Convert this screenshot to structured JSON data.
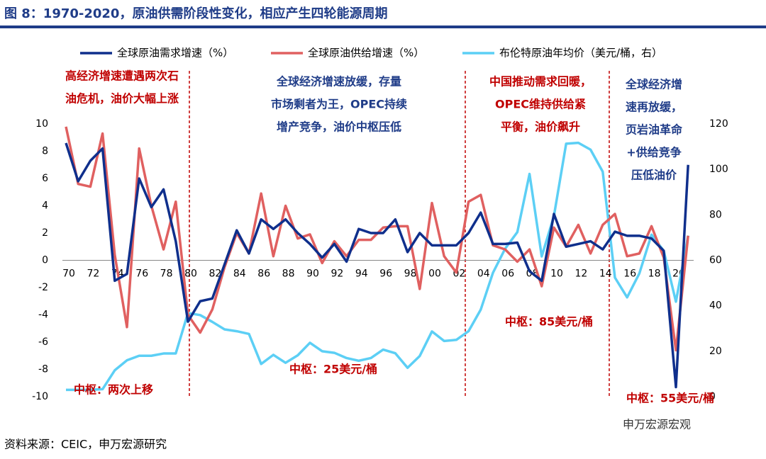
{
  "chart_data": {
    "type": "line",
    "title": "图 8：1970-2020，原油供需阶段性变化，相应产生四轮能源周期",
    "categories": [
      "70",
      null,
      "72",
      null,
      "74",
      null,
      "76",
      null,
      "78",
      null,
      "80",
      null,
      "82",
      null,
      "84",
      null,
      "86",
      null,
      "88",
      null,
      "90",
      null,
      "92",
      null,
      "94",
      null,
      "96",
      null,
      "98",
      null,
      "00",
      null,
      "02",
      null,
      "04",
      null,
      "06",
      null,
      "08",
      null,
      "10",
      null,
      "12",
      null,
      "14",
      null,
      "16",
      null,
      "18",
      null,
      "20",
      null
    ],
    "series": [
      {
        "name": "全球原油需求增速（%）",
        "color": "#0f2f8c",
        "values": [
          8.6,
          5.8,
          7.3,
          8.2,
          -1.5,
          -1.0,
          6.0,
          3.9,
          5.2,
          1.4,
          -4.5,
          -3.0,
          -2.8,
          -0.3,
          2.2,
          0.5,
          3.0,
          2.3,
          3.0,
          2.0,
          1.2,
          0.2,
          1.2,
          -0.1,
          2.3,
          2.0,
          2.0,
          3.0,
          0.6,
          2.0,
          1.1,
          1.1,
          1.1,
          2.0,
          3.5,
          1.2,
          1.2,
          1.3,
          -0.8,
          -1.5,
          3.4,
          1.0,
          1.2,
          1.4,
          0.8,
          2.1,
          1.8,
          1.8,
          1.6,
          0.7,
          -9.3,
          7.0
        ]
      },
      {
        "name": "全球原油供给增速（%）",
        "color": "#e06060",
        "values": [
          9.8,
          5.6,
          5.4,
          9.3,
          0.4,
          -4.9,
          8.2,
          4.0,
          0.8,
          4.3,
          -4.0,
          -5.3,
          -3.6,
          -0.5,
          2.0,
          0.5,
          4.9,
          0.3,
          4.0,
          1.6,
          1.9,
          -0.2,
          1.4,
          0.3,
          1.5,
          1.5,
          2.4,
          2.5,
          2.5,
          -2.1,
          4.2,
          0.3,
          -0.9,
          4.3,
          4.8,
          1.1,
          0.8,
          -0.1,
          0.8,
          -1.9,
          2.4,
          1.0,
          2.6,
          0.5,
          2.6,
          3.4,
          0.3,
          0.5,
          2.5,
          0.2,
          -6.6,
          1.8
        ]
      },
      {
        "name": "布伦特原油年均价（美元/桶，右）",
        "color": "#5ccff5",
        "axis": "y2",
        "values": [
          3,
          3,
          3,
          3.3,
          11.6,
          16,
          18,
          18,
          19,
          19,
          36.8,
          35.9,
          32.9,
          29.6,
          28.8,
          27.6,
          14.4,
          18.4,
          14.9,
          18.2,
          23.7,
          20.0,
          19.3,
          17.0,
          15.8,
          17.0,
          20.7,
          19.1,
          12.7,
          17.9,
          28.7,
          24.5,
          25.0,
          28.8,
          38.3,
          54.5,
          65.1,
          72.4,
          98.0,
          61.7,
          79.5,
          111.3,
          111.7,
          108.7,
          99.0,
          52.4,
          43.7,
          54.2,
          71.3,
          64.2,
          41.8,
          70.9
        ]
      }
    ],
    "ylim": [
      -10,
      10
    ],
    "yticks": [
      -10,
      -8,
      -6,
      -4,
      -2,
      0,
      2,
      4,
      6,
      8,
      10
    ],
    "y2lim": [
      0,
      120
    ],
    "y2ticks": [
      0,
      20,
      40,
      60,
      80,
      100,
      120
    ],
    "annotations": [
      [
        "高经济增速遭遇两次石",
        "油危机，油价大幅上涨"
      ],
      [
        "全球经济增速放缓，存量",
        "市场剩者为王，OPEC持续",
        "增产竞争，油价中枢压低"
      ],
      [
        "中国推动需求回暖，",
        "OPEC维持供给紧",
        "平衡，油价飙升"
      ],
      [
        "全球经济增",
        "速再放缓，",
        "页岩油革命",
        "+供给竞争",
        "压低油价"
      ],
      [
        "中枢：两次上移"
      ],
      [
        "中枢：25美元/桶"
      ],
      [
        "中枢：85美元/桶"
      ],
      [
        "中枢：55美元/桶"
      ]
    ],
    "source": "资料来源：CEIC，申万宏源研究",
    "watermark": "申万宏源宏观"
  }
}
